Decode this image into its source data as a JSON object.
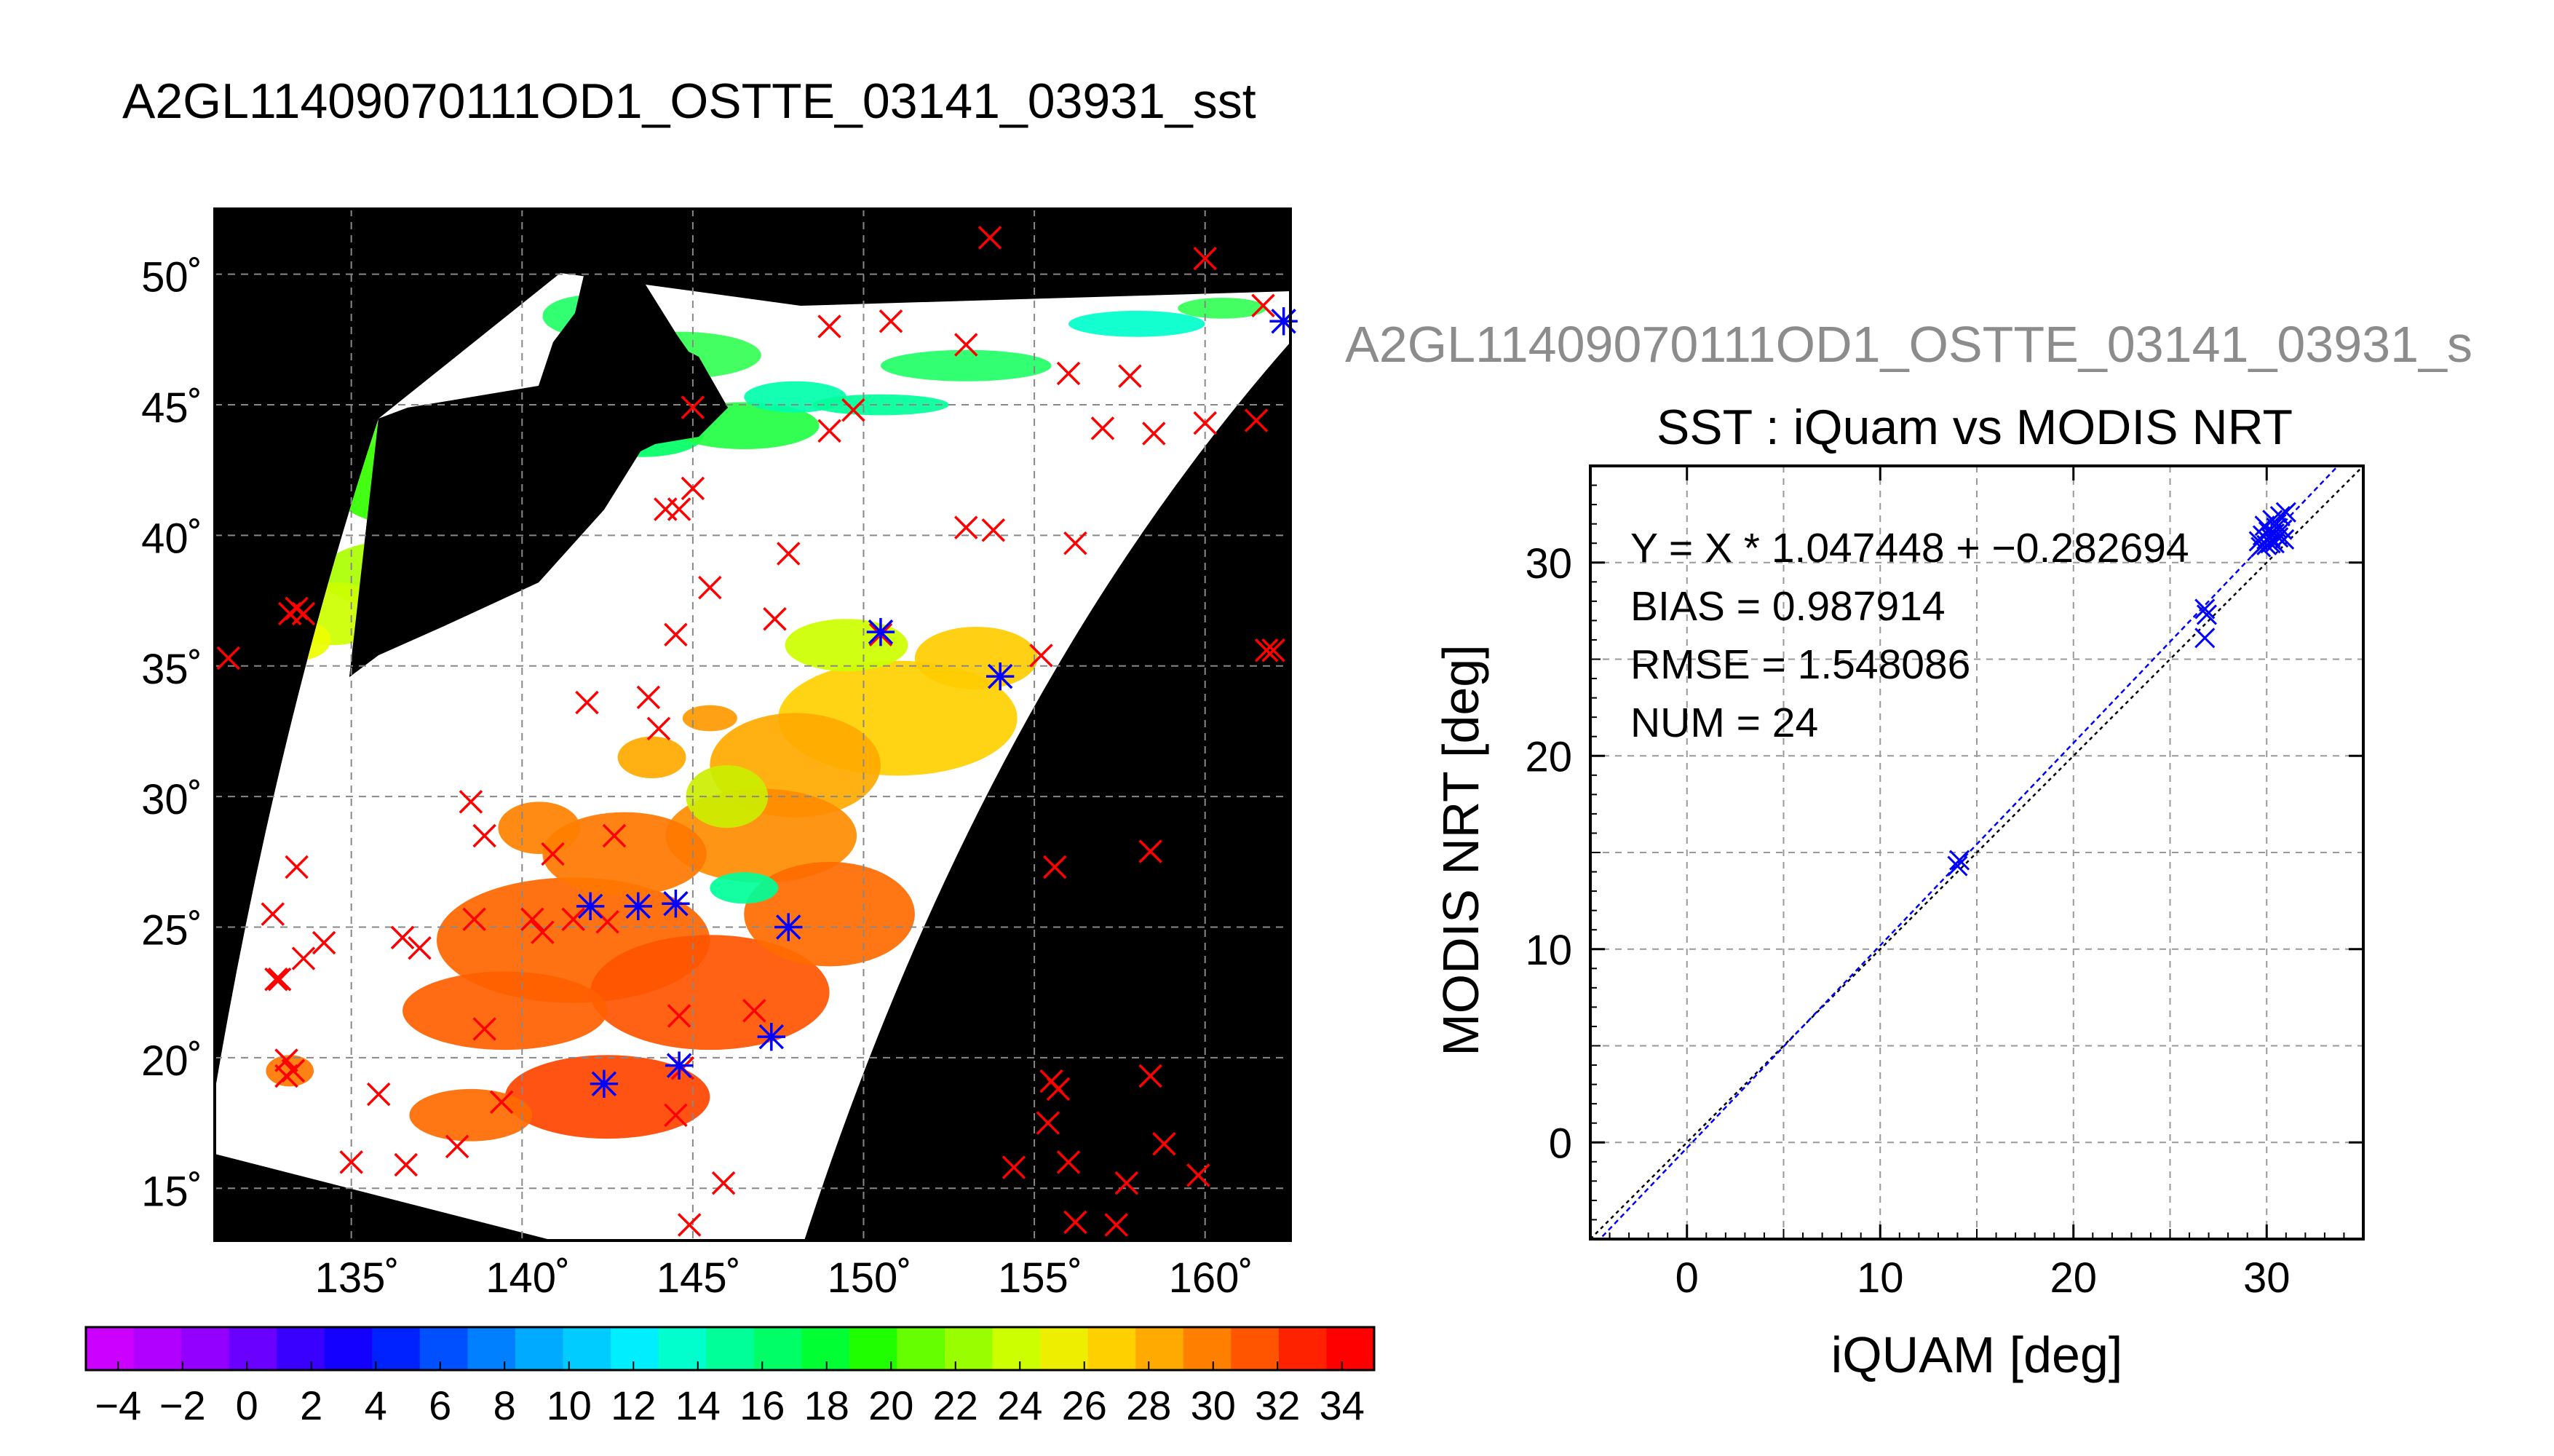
{
  "page_title": "A2GL11409070111OD1_OSTTE_03141_03931_sst",
  "chart_data": [
    {
      "type": "map",
      "lon_ticks": [
        "135˚",
        "140˚",
        "145˚",
        "150˚",
        "155˚",
        "160˚"
      ],
      "lat_ticks": [
        "50˚",
        "45˚",
        "40˚",
        "35˚",
        "30˚",
        "25˚",
        "20˚",
        "15˚"
      ],
      "lon_range": [
        131,
        162.5
      ],
      "lat_range": [
        13,
        52.5
      ],
      "grid": true,
      "colorbar": {
        "range": [
          -5,
          35
        ],
        "ticks": [
          -4,
          -2,
          0,
          2,
          4,
          6,
          8,
          10,
          12,
          14,
          16,
          18,
          20,
          22,
          24,
          26,
          28,
          30,
          32,
          34
        ],
        "tick_labels": [
          "−4",
          "−2",
          "0",
          "2",
          "4",
          "6",
          "8",
          "10",
          "12",
          "14",
          "16",
          "18",
          "20",
          "22",
          "24",
          "26",
          "28",
          "30",
          "32",
          "34"
        ],
        "colors": [
          "#cc00ff",
          "#b100ff",
          "#9300ff",
          "#6a00ff",
          "#3a00ff",
          "#1400ff",
          "#0022ff",
          "#0050ff",
          "#0080ff",
          "#00aaff",
          "#00ccff",
          "#00eeff",
          "#00ffcc",
          "#00ff99",
          "#00ff66",
          "#00ff33",
          "#20ff00",
          "#66ff00",
          "#99ff00",
          "#ccff00",
          "#eeee00",
          "#ffd000",
          "#ffaa00",
          "#ff8000",
          "#ff5500",
          "#ff2200",
          "#ff0000"
        ]
      },
      "red_marks": [
        [
          131.4,
          35.3
        ],
        [
          133.4,
          37.2
        ],
        [
          133.2,
          37.0
        ],
        [
          133.6,
          37.0
        ],
        [
          141.9,
          33.6
        ],
        [
          143.7,
          33.8
        ],
        [
          144.0,
          32.6
        ],
        [
          144.5,
          36.2
        ],
        [
          145.0,
          41.8
        ],
        [
          144.6,
          41.0
        ],
        [
          144.2,
          41.0
        ],
        [
          145.5,
          38.0
        ],
        [
          145.0,
          44.9
        ],
        [
          147.4,
          36.8
        ],
        [
          147.8,
          39.3
        ],
        [
          149.0,
          44.0
        ],
        [
          149.0,
          48.0
        ],
        [
          149.7,
          44.8
        ],
        [
          150.8,
          48.2
        ],
        [
          150.5,
          36.2
        ],
        [
          153.0,
          47.3
        ],
        [
          153.0,
          40.3
        ],
        [
          153.8,
          40.2
        ],
        [
          153.7,
          51.4
        ],
        [
          155.2,
          35.4
        ],
        [
          156.0,
          46.2
        ],
        [
          156.2,
          39.7
        ],
        [
          157.0,
          44.1
        ],
        [
          157.8,
          46.1
        ],
        [
          158.5,
          43.9
        ],
        [
          160.0,
          44.3
        ],
        [
          160.0,
          50.6
        ],
        [
          161.5,
          44.4
        ],
        [
          161.7,
          48.8
        ],
        [
          162.0,
          35.6
        ],
        [
          161.8,
          35.6
        ],
        [
          138.5,
          29.8
        ],
        [
          138.9,
          28.5
        ],
        [
          140.9,
          27.8
        ],
        [
          142.7,
          28.5
        ],
        [
          141.5,
          25.3
        ],
        [
          142.5,
          25.2
        ],
        [
          140.3,
          25.3
        ],
        [
          140.6,
          24.8
        ],
        [
          138.6,
          25.3
        ],
        [
          137.0,
          24.2
        ],
        [
          136.5,
          24.6
        ],
        [
          134.2,
          24.4
        ],
        [
          133.6,
          23.8
        ],
        [
          132.7,
          25.5
        ],
        [
          133.4,
          27.3
        ],
        [
          132.8,
          23.0
        ],
        [
          132.9,
          23.0
        ],
        [
          133.1,
          19.9
        ],
        [
          133.3,
          19.5
        ],
        [
          133.1,
          19.3
        ],
        [
          135.8,
          18.6
        ],
        [
          138.9,
          21.1
        ],
        [
          139.4,
          18.3
        ],
        [
          138.1,
          16.6
        ],
        [
          136.6,
          15.9
        ],
        [
          135.0,
          16.0
        ],
        [
          144.6,
          21.6
        ],
        [
          146.8,
          21.8
        ],
        [
          144.7,
          19.6
        ],
        [
          144.5,
          17.8
        ],
        [
          145.9,
          15.2
        ],
        [
          144.9,
          13.6
        ],
        [
          155.7,
          18.8
        ],
        [
          155.5,
          19.1
        ],
        [
          155.4,
          17.5
        ],
        [
          156.0,
          16.0
        ],
        [
          156.2,
          13.7
        ],
        [
          157.4,
          13.6
        ],
        [
          157.7,
          15.2
        ],
        [
          158.8,
          16.7
        ],
        [
          159.8,
          15.5
        ],
        [
          158.4,
          19.3
        ],
        [
          158.4,
          27.9
        ],
        [
          155.6,
          27.3
        ],
        [
          154.4,
          15.8
        ]
      ],
      "blue_marks": [
        [
          142.0,
          25.8
        ],
        [
          143.4,
          25.8
        ],
        [
          144.5,
          25.9
        ],
        [
          147.8,
          25.0
        ],
        [
          147.3,
          20.8
        ],
        [
          142.4,
          19.0
        ],
        [
          144.6,
          19.7
        ],
        [
          154.0,
          34.6
        ],
        [
          150.5,
          36.3
        ],
        [
          162.3,
          48.2
        ]
      ]
    },
    {
      "type": "scatter",
      "suptitle": "A2GL11409070111OD1_OSTTE_03141_03931_s",
      "title": "SST : iQuam vs MODIS NRT",
      "xlabel": "iQUAM [deg]",
      "ylabel": "MODIS NRT [deg]",
      "xlim": [
        -5,
        35
      ],
      "ylim": [
        -5,
        35
      ],
      "xticks": [
        0,
        10,
        20,
        30
      ],
      "yticks": [
        0,
        10,
        20,
        30
      ],
      "grid": true,
      "stats": [
        "Y = X * 1.047448 + −0.282694",
        "BIAS = 0.987914",
        "RMSE = 1.548086",
        "NUM = 24"
      ],
      "fit": {
        "slope": 1.047448,
        "intercept": -0.282694
      },
      "points": [
        [
          14.0,
          14.3
        ],
        [
          14.1,
          14.6
        ],
        [
          26.8,
          27.6
        ],
        [
          26.9,
          27.3
        ],
        [
          26.8,
          26.1
        ],
        [
          29.6,
          31.1
        ],
        [
          29.8,
          31.4
        ],
        [
          29.9,
          31.9
        ],
        [
          30.0,
          31.2
        ],
        [
          30.1,
          31.6
        ],
        [
          30.2,
          31.0
        ],
        [
          30.3,
          32.2
        ],
        [
          30.4,
          31.5
        ],
        [
          30.5,
          31.8
        ],
        [
          30.6,
          31.3
        ],
        [
          30.7,
          32.4
        ],
        [
          30.8,
          31.7
        ],
        [
          31.0,
          32.6
        ],
        [
          29.7,
          30.8
        ],
        [
          30.0,
          30.9
        ],
        [
          30.2,
          31.3
        ],
        [
          30.4,
          31.0
        ],
        [
          30.9,
          31.2
        ],
        [
          30.5,
          32.0
        ]
      ]
    }
  ]
}
